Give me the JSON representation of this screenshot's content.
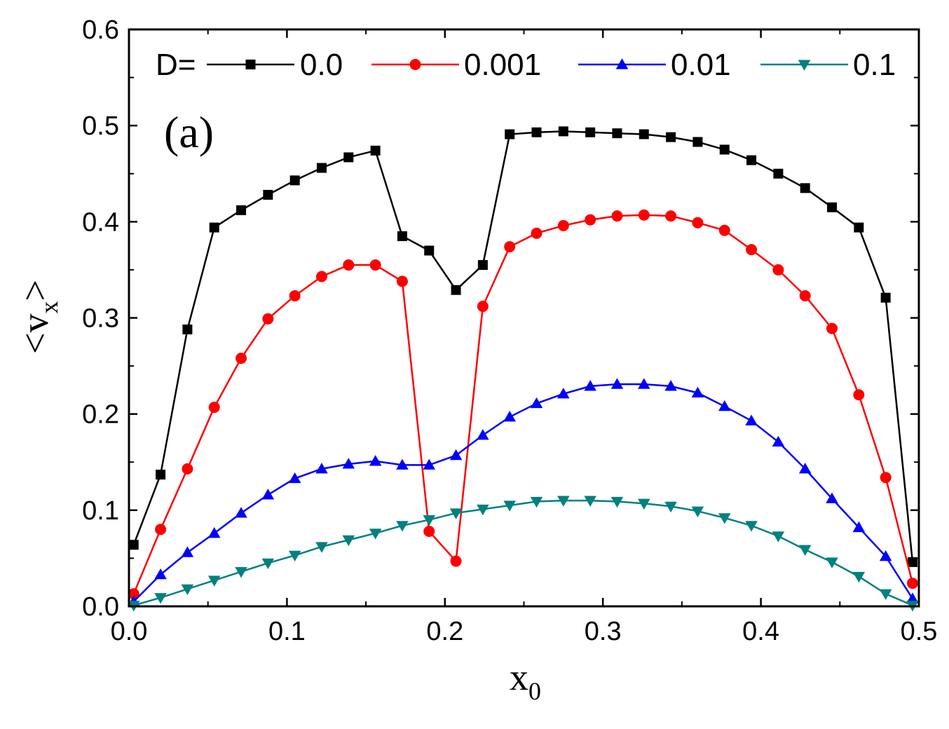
{
  "chart_data": {
    "type": "line",
    "panel_label": "(a)",
    "xlabel": "x",
    "xlabel_sub": "0",
    "ylabel_prefix": "<",
    "ylabel_var": "v",
    "ylabel_sub": "x",
    "ylabel_suffix": ">",
    "xlim": [
      0.0,
      0.5
    ],
    "ylim": [
      0.0,
      0.6
    ],
    "xticks": [
      "0.0",
      "0.1",
      "0.2",
      "0.3",
      "0.4",
      "0.5"
    ],
    "yticks": [
      "0.0",
      "0.1",
      "0.2",
      "0.3",
      "0.4",
      "0.5",
      "0.6"
    ],
    "legend_prefix": "D=",
    "x": [
      0.003,
      0.02,
      0.037,
      0.054,
      0.071,
      0.088,
      0.105,
      0.122,
      0.139,
      0.156,
      0.173,
      0.19,
      0.207,
      0.224,
      0.241,
      0.258,
      0.275,
      0.292,
      0.309,
      0.326,
      0.343,
      0.36,
      0.377,
      0.394,
      0.411,
      0.428,
      0.445,
      0.462,
      0.479,
      0.496
    ],
    "series": [
      {
        "name": "0.0",
        "color": "#000000",
        "marker": "square",
        "values": [
          0.064,
          0.137,
          0.288,
          0.394,
          0.412,
          0.428,
          0.443,
          0.456,
          0.467,
          0.474,
          0.385,
          0.37,
          0.329,
          0.355,
          0.491,
          0.493,
          0.494,
          0.493,
          0.492,
          0.491,
          0.488,
          0.483,
          0.475,
          0.464,
          0.45,
          0.435,
          0.415,
          0.394,
          0.321,
          0.046
        ]
      },
      {
        "name": "0.001",
        "color": "#ff0000",
        "marker": "circle",
        "values": [
          0.013,
          0.08,
          0.143,
          0.207,
          0.258,
          0.299,
          0.323,
          0.343,
          0.355,
          0.355,
          0.338,
          0.078,
          0.047,
          0.312,
          0.374,
          0.388,
          0.396,
          0.402,
          0.406,
          0.407,
          0.406,
          0.399,
          0.391,
          0.371,
          0.35,
          0.323,
          0.289,
          0.22,
          0.134,
          0.024
        ]
      },
      {
        "name": "0.01",
        "color": "#0000ff",
        "marker": "triangle-up",
        "values": [
          0.005,
          0.033,
          0.056,
          0.076,
          0.097,
          0.116,
          0.133,
          0.143,
          0.148,
          0.151,
          0.147,
          0.147,
          0.157,
          0.178,
          0.197,
          0.211,
          0.221,
          0.229,
          0.231,
          0.231,
          0.229,
          0.222,
          0.208,
          0.193,
          0.171,
          0.143,
          0.112,
          0.082,
          0.052,
          0.008
        ]
      },
      {
        "name": "0.1",
        "color": "#008080",
        "marker": "triangle-down",
        "values": [
          0.001,
          0.009,
          0.018,
          0.027,
          0.036,
          0.045,
          0.053,
          0.062,
          0.069,
          0.076,
          0.084,
          0.09,
          0.097,
          0.101,
          0.105,
          0.109,
          0.11,
          0.11,
          0.109,
          0.107,
          0.104,
          0.099,
          0.092,
          0.084,
          0.073,
          0.059,
          0.046,
          0.031,
          0.013,
          0.001
        ]
      }
    ]
  }
}
